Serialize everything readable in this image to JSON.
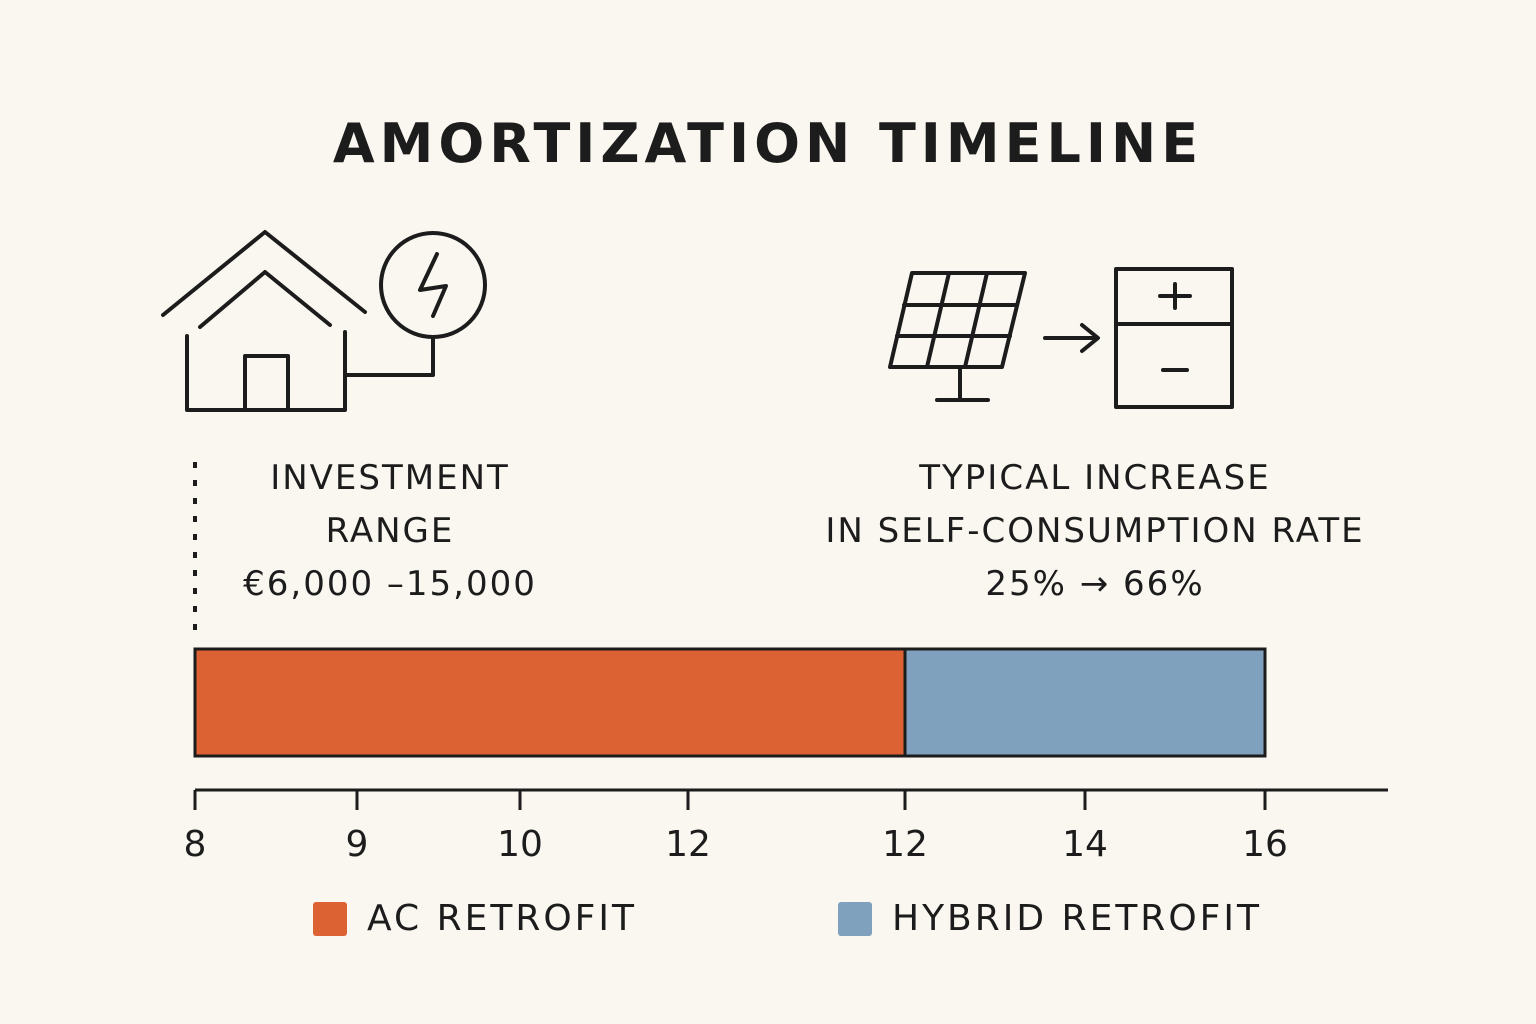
{
  "chart_data": {
    "type": "bar",
    "title": "AMORTIZATION TIMELINE",
    "orientation": "horizontal-stacked-timeline",
    "tick_labels": [
      "8",
      "9",
      "10",
      "12",
      "12",
      "14",
      "16"
    ],
    "series": [
      {
        "name": "AC RETROFIT",
        "start": 8,
        "end": 12,
        "color": "#dd6233"
      },
      {
        "name": "HYBRID RETROFIT",
        "start": 12,
        "end": 16,
        "color": "#7fa1bd"
      }
    ],
    "annotations": {
      "investment": {
        "line1": "INVESTMENT",
        "line2": "RANGE",
        "line3": "€6,000 –15,000"
      },
      "self_consumption": {
        "line1": "TYPICAL INCREASE",
        "line2": "IN SELF-CONSUMPTION RATE",
        "line3": "25% → 66%"
      }
    },
    "legend": {
      "position": "bottom"
    }
  },
  "icons": [
    "house-icon",
    "lightning-icon",
    "solar-panel-icon",
    "arrow-right-icon",
    "battery-icon"
  ]
}
